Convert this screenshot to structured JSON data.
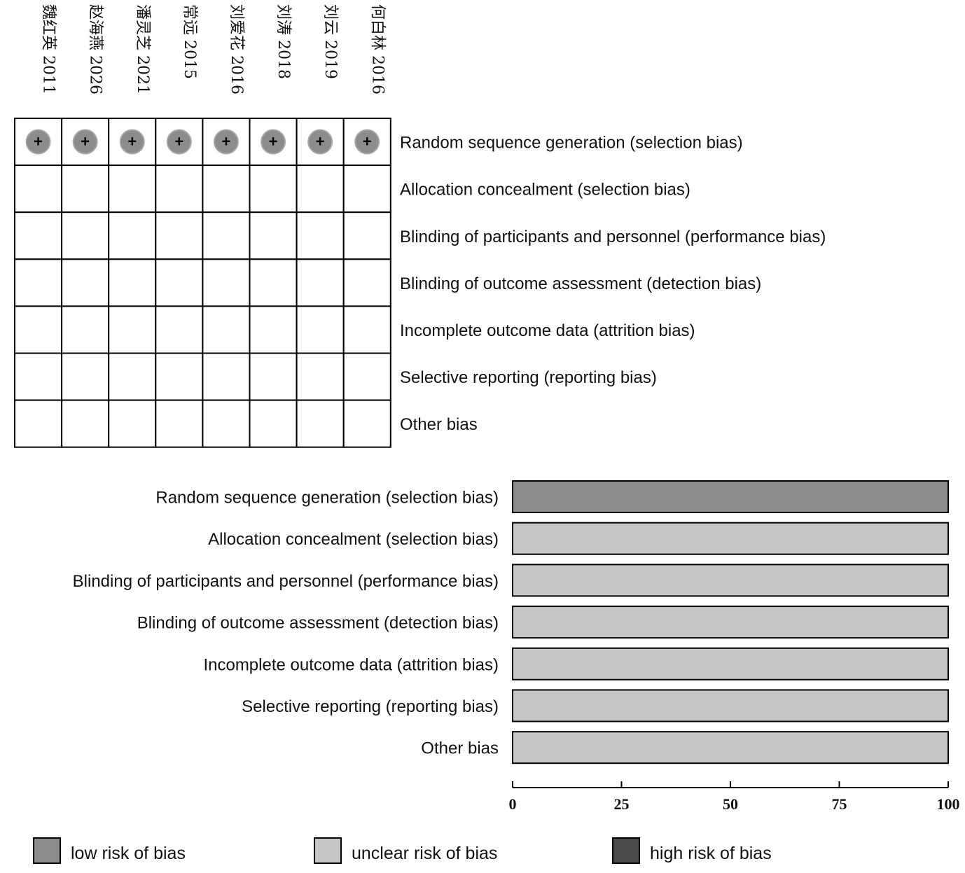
{
  "colors": {
    "low": "#8c8c8c",
    "unclear": "#c6c6c6",
    "high": "#4a4a4a",
    "border": "#000000"
  },
  "chart_data": [
    {
      "type": "table",
      "studies": [
        "魏红英 2011",
        "赵海燕 2026",
        "潘灵芝 2021",
        "常远 2015",
        "刘爱花 2016",
        "刘涛 2018",
        "刘云 2019",
        "何白林 2016"
      ],
      "domains": [
        "Random sequence generation (selection bias)",
        "Allocation concealment (selection bias)",
        "Blinding of participants and personnel (performance bias)",
        "Blinding of outcome assessment (detection bias)",
        "Incomplete outcome data (attrition bias)",
        "Selective reporting (reporting bias)",
        "Other bias"
      ],
      "judgements": [
        [
          "low",
          "low",
          "low",
          "low",
          "low",
          "low",
          "low",
          "low"
        ],
        [
          "",
          "",
          "",
          "",
          "",
          "",
          "",
          ""
        ],
        [
          "",
          "",
          "",
          "",
          "",
          "",
          "",
          ""
        ],
        [
          "",
          "",
          "",
          "",
          "",
          "",
          "",
          ""
        ],
        [
          "",
          "",
          "",
          "",
          "",
          "",
          "",
          ""
        ],
        [
          "",
          "",
          "",
          "",
          "",
          "",
          "",
          ""
        ],
        [
          "",
          "",
          "",
          "",
          "",
          "",
          "",
          ""
        ]
      ],
      "symbol_low": "+"
    },
    {
      "type": "bar",
      "orientation": "horizontal",
      "stacked": true,
      "categories": [
        "Random sequence generation (selection bias)",
        "Allocation concealment (selection bias)",
        "Blinding of participants and personnel (performance bias)",
        "Blinding of outcome assessment (detection bias)",
        "Incomplete outcome data (attrition bias)",
        "Selective reporting (reporting bias)",
        "Other bias"
      ],
      "series": [
        {
          "name": "low risk of bias",
          "values": [
            100,
            0,
            0,
            0,
            0,
            0,
            0
          ]
        },
        {
          "name": "unclear risk of bias",
          "values": [
            0,
            100,
            100,
            100,
            100,
            100,
            100
          ]
        },
        {
          "name": "high risk of bias",
          "values": [
            0,
            0,
            0,
            0,
            0,
            0,
            0
          ]
        }
      ],
      "xlim": [
        0,
        100
      ],
      "xticks": [
        0,
        25,
        50,
        75,
        100
      ],
      "legend_position": "bottom"
    }
  ],
  "legend": [
    {
      "key": "low",
      "label": "low risk of bias"
    },
    {
      "key": "unclear",
      "label": "unclear risk of bias"
    },
    {
      "key": "high",
      "label": "high risk of bias"
    }
  ]
}
